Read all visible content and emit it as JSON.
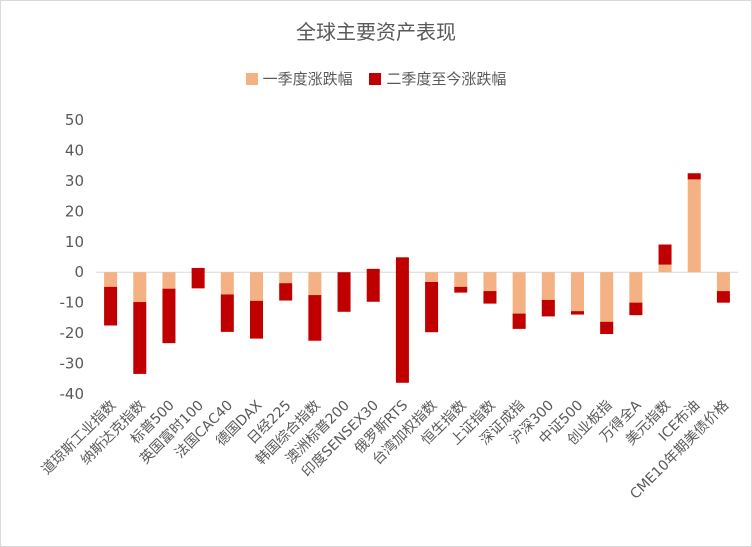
{
  "chart_data": {
    "type": "bar",
    "subtype": "floating-stacked",
    "title": "全球主要资产表现",
    "ylim": [
      -40,
      50
    ],
    "yticks": [
      -40,
      -30,
      -20,
      -10,
      0,
      10,
      20,
      30,
      40,
      50
    ],
    "grid": false,
    "legend_position": "top",
    "categories": [
      "道琼斯工业指数",
      "纳斯达克指数",
      "标普500",
      "英国富时100",
      "法国CAC40",
      "德国DAX",
      "日经225",
      "韩国综合指数",
      "澳洲标普200",
      "印度SENSEX30",
      "俄罗斯RTS",
      "台湾加权指数",
      "恒生指数",
      "上证指数",
      "深证成指",
      "沪深300",
      "中证500",
      "创业板指",
      "万得全A",
      "美元指数",
      "ICE布油",
      "CME10年期美债价格"
    ],
    "series": [
      {
        "name": "一季度涨跌幅",
        "color": "#F4B183",
        "values": [
          -4.8,
          -9.8,
          -5.4,
          1.4,
          -7.3,
          -9.4,
          -3.6,
          -7.5,
          0.0,
          1.1,
          -36.3,
          -3.2,
          -4.8,
          -10.3,
          -18.6,
          -14.5,
          -13.9,
          -20.3,
          -14.1,
          2.5,
          32.5,
          -6.2
        ]
      },
      {
        "name": "二季度至今涨跌幅",
        "color": "#C00000",
        "values": [
          -12.7,
          -23.6,
          -17.9,
          -6.7,
          -12.3,
          -12.4,
          -5.7,
          -15.0,
          -13.0,
          -10.8,
          41.2,
          -16.5,
          -1.9,
          4.1,
          5.0,
          5.4,
          1.1,
          4.0,
          4.1,
          6.6,
          -2.0,
          -3.8
        ]
      }
    ]
  }
}
